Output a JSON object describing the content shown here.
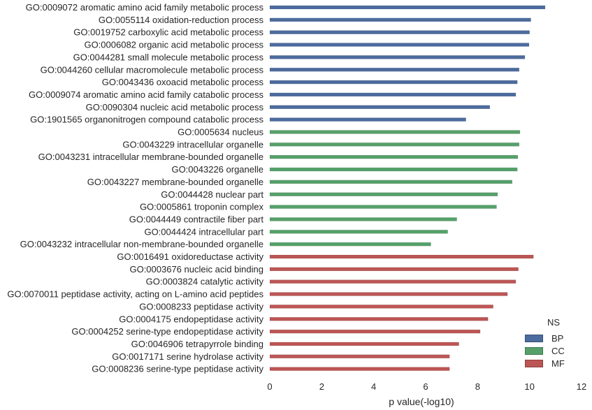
{
  "chart_data": {
    "type": "bar",
    "orientation": "horizontal",
    "xlabel": "p value(-log10)",
    "xlim": [
      0,
      12
    ],
    "xticks": [
      "0",
      "2",
      "4",
      "6",
      "8",
      "10",
      "12"
    ],
    "grid": false,
    "legend_placement": "bottom-right",
    "legend_title": "NS",
    "series": [
      {
        "name": "BP",
        "color": "#4c6b9e"
      },
      {
        "name": "CC",
        "color": "#55a06a"
      },
      {
        "name": "MF",
        "color": "#bc5654"
      }
    ],
    "categories": [
      {
        "label": "GO:0009072 aromatic amino acid family metabolic process",
        "series": "BP",
        "value": 10.6
      },
      {
        "label": "GO:0055114 oxidation-reduction process",
        "series": "BP",
        "value": 10.05
      },
      {
        "label": "GO:0019752 carboxylic acid metabolic process",
        "series": "BP",
        "value": 10.0
      },
      {
        "label": "GO:0006082 organic acid metabolic process",
        "series": "BP",
        "value": 9.98
      },
      {
        "label": "GO:0044281 small molecule metabolic process",
        "series": "BP",
        "value": 9.82
      },
      {
        "label": "GO:0044260 cellular macromolecule metabolic process",
        "series": "BP",
        "value": 9.6
      },
      {
        "label": "GO:0043436 oxoacid metabolic process",
        "series": "BP",
        "value": 9.53
      },
      {
        "label": "GO:0009074 aromatic amino acid family catabolic process",
        "series": "BP",
        "value": 9.47
      },
      {
        "label": "GO:0090304 nucleic acid metabolic process",
        "series": "BP",
        "value": 8.47
      },
      {
        "label": "GO:1901565 organonitrogen compound catabolic process",
        "series": "BP",
        "value": 7.55
      },
      {
        "label": "GO:0005634 nucleus",
        "series": "CC",
        "value": 9.63
      },
      {
        "label": "GO:0043229 intracellular organelle",
        "series": "CC",
        "value": 9.6
      },
      {
        "label": "GO:0043231 intracellular membrane-bounded organelle",
        "series": "CC",
        "value": 9.55
      },
      {
        "label": "GO:0043226 organelle",
        "series": "CC",
        "value": 9.53
      },
      {
        "label": "GO:0043227 membrane-bounded organelle",
        "series": "CC",
        "value": 9.33
      },
      {
        "label": "GO:0044428 nuclear part",
        "series": "CC",
        "value": 8.77
      },
      {
        "label": "GO:0005861 troponin complex",
        "series": "CC",
        "value": 8.73
      },
      {
        "label": "GO:0044449 contractile fiber part",
        "series": "CC",
        "value": 7.2
      },
      {
        "label": "GO:0044424 intracellular part",
        "series": "CC",
        "value": 6.85
      },
      {
        "label": "GO:0043232 intracellular non-membrane-bounded organelle",
        "series": "CC",
        "value": 6.2
      },
      {
        "label": "GO:0016491 oxidoreductase activity",
        "series": "MF",
        "value": 10.15
      },
      {
        "label": "GO:0003676 nucleic acid binding",
        "series": "MF",
        "value": 9.57
      },
      {
        "label": "GO:0003824 catalytic activity",
        "series": "MF",
        "value": 9.47
      },
      {
        "label": "GO:0070011 peptidase activity, acting on L-amino acid peptides",
        "series": "MF",
        "value": 9.15
      },
      {
        "label": "GO:0008233 peptidase activity",
        "series": "MF",
        "value": 8.6
      },
      {
        "label": "GO:0004175 endopeptidase activity",
        "series": "MF",
        "value": 8.4
      },
      {
        "label": "GO:0004252 serine-type endopeptidase activity",
        "series": "MF",
        "value": 8.1
      },
      {
        "label": "GO:0046906 tetrapyrrole binding",
        "series": "MF",
        "value": 7.28
      },
      {
        "label": "GO:0017171 serine hydrolase activity",
        "series": "MF",
        "value": 6.92
      },
      {
        "label": "GO:0008236 serine-type peptidase activity",
        "series": "MF",
        "value": 6.92
      }
    ]
  }
}
